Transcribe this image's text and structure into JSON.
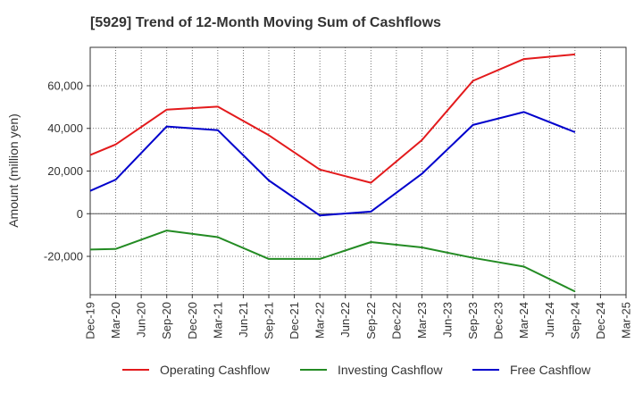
{
  "chart_data": {
    "type": "line",
    "title": "[5929]  Trend of 12-Month Moving Sum of Cashflows",
    "xlabel": "",
    "ylabel": "Amount (million yen)",
    "categories": [
      "Dec-19",
      "Mar-20",
      "Jun-20",
      "Sep-20",
      "Dec-20",
      "Mar-21",
      "Jun-21",
      "Sep-21",
      "Dec-21",
      "Mar-22",
      "Jun-22",
      "Sep-22",
      "Dec-22",
      "Mar-23",
      "Jun-23",
      "Sep-23",
      "Dec-23",
      "Mar-24",
      "Jun-24",
      "Sep-24",
      "Dec-24",
      "Mar-25"
    ],
    "ylim": [
      -38000,
      78000
    ],
    "yticks": [
      -20000,
      0,
      20000,
      40000,
      60000
    ],
    "ytick_labels": [
      "-20,000",
      "0",
      "20,000",
      "40,000",
      "60,000"
    ],
    "grid": true,
    "legend_position": "bottom",
    "series": [
      {
        "name": "Operating Cashflow",
        "color": "#e31a1c",
        "values": [
          27500,
          32500,
          null,
          48800,
          null,
          50200,
          null,
          36800,
          null,
          20700,
          null,
          14500,
          null,
          34500,
          null,
          62300,
          null,
          72500,
          null,
          74700,
          null,
          null
        ]
      },
      {
        "name": "Investing Cashflow",
        "color": "#238b23",
        "values": [
          -16800,
          -16500,
          null,
          -7900,
          null,
          -11000,
          null,
          -21200,
          null,
          -21200,
          null,
          -13300,
          null,
          -15800,
          null,
          -20700,
          null,
          -24800,
          null,
          -36500,
          null,
          null
        ]
      },
      {
        "name": "Free Cashflow",
        "color": "#0000cc",
        "values": [
          10700,
          16000,
          null,
          40900,
          null,
          39200,
          null,
          15600,
          null,
          -800,
          null,
          1000,
          null,
          18700,
          null,
          41600,
          null,
          47700,
          null,
          38200,
          null,
          null
        ]
      }
    ]
  }
}
